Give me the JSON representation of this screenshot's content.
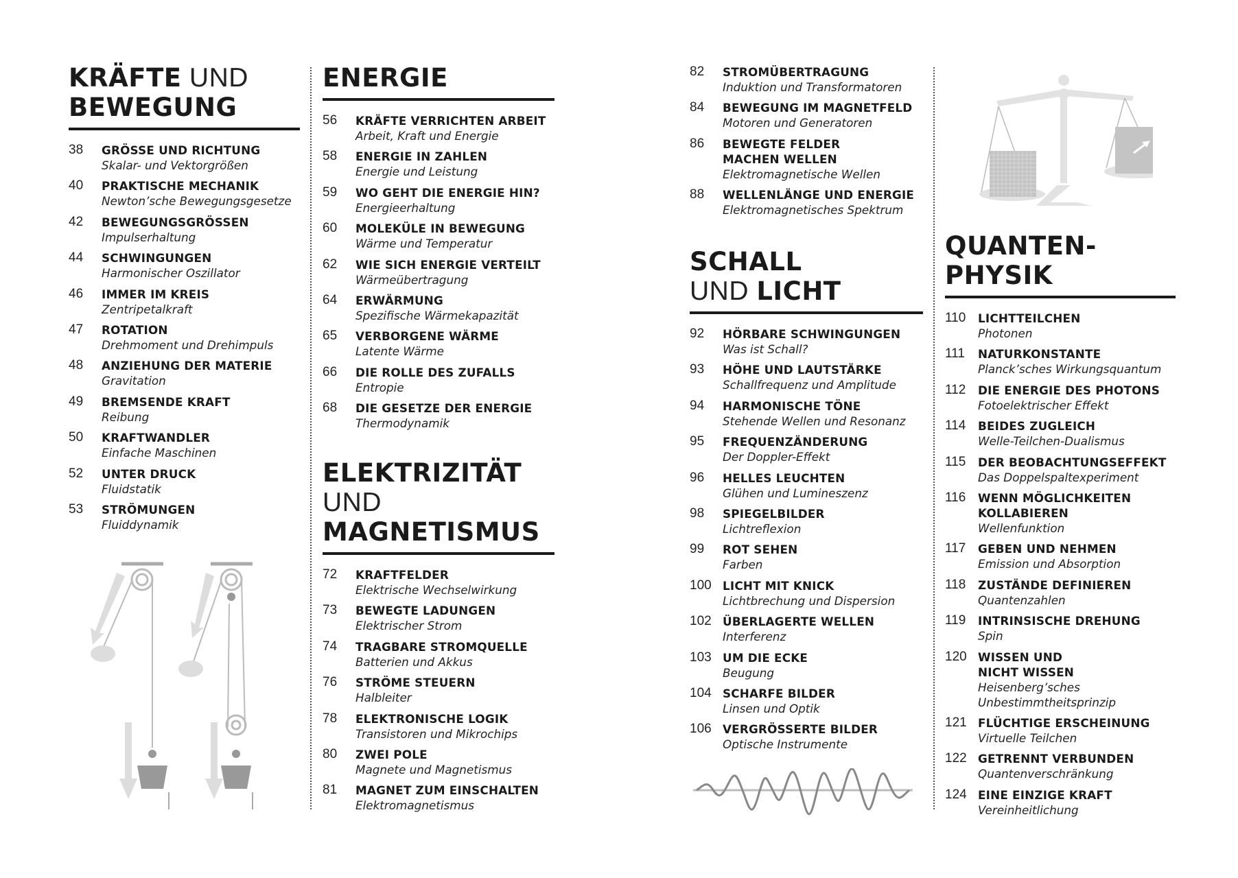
{
  "sections": [
    {
      "id": "kraefte",
      "heading": [
        [
          {
            "text": "KRÄFTE",
            "bold": true
          },
          {
            "text": " UND",
            "bold": false
          }
        ],
        [
          {
            "text": "BEWEGUNG",
            "bold": true
          }
        ]
      ],
      "entries": [
        {
          "page": "38",
          "title": "GRÖSSE UND RICHTUNG",
          "subtitle": "Skalar- und Vektorgrößen"
        },
        {
          "page": "40",
          "title": "PRAKTISCHE MECHANIK",
          "subtitle": "Newton’sche Bewegungsgesetze"
        },
        {
          "page": "42",
          "title": "BEWEGUNGSGRÖSSEN",
          "subtitle": "Impulserhaltung"
        },
        {
          "page": "44",
          "title": "SCHWINGUNGEN",
          "subtitle": "Harmonischer Oszillator"
        },
        {
          "page": "46",
          "title": "IMMER IM KREIS",
          "subtitle": "Zentripetalkraft"
        },
        {
          "page": "47",
          "title": "ROTATION",
          "subtitle": "Drehmoment und Drehimpuls"
        },
        {
          "page": "48",
          "title": "ANZIEHUNG DER MATERIE",
          "subtitle": "Gravitation"
        },
        {
          "page": "49",
          "title": "BREMSENDE KRAFT",
          "subtitle": "Reibung"
        },
        {
          "page": "50",
          "title": "KRAFTWANDLER",
          "subtitle": "Einfache Maschinen"
        },
        {
          "page": "52",
          "title": "UNTER DRUCK",
          "subtitle": "Fluidstatik"
        },
        {
          "page": "53",
          "title": "STRÖMUNGEN",
          "subtitle": "Fluiddynamik"
        }
      ]
    },
    {
      "id": "energie",
      "heading": [
        [
          {
            "text": "ENERGIE",
            "bold": true
          }
        ]
      ],
      "entries": [
        {
          "page": "56",
          "title": "KRÄFTE VERRICHTEN ARBEIT",
          "subtitle": "Arbeit, Kraft und Energie"
        },
        {
          "page": "58",
          "title": "ENERGIE IN ZAHLEN",
          "subtitle": "Energie und Leistung"
        },
        {
          "page": "59",
          "title": "WO GEHT DIE ENERGIE HIN?",
          "subtitle": "Energieerhaltung"
        },
        {
          "page": "60",
          "title": "MOLEKÜLE IN BEWEGUNG",
          "subtitle": "Wärme und Temperatur"
        },
        {
          "page": "62",
          "title": "WIE SICH ENERGIE VERTEILT",
          "subtitle": "Wärmeübertragung"
        },
        {
          "page": "64",
          "title": "ERWÄRMUNG",
          "subtitle": "Spezifische Wärmekapazität"
        },
        {
          "page": "65",
          "title": "VERBORGENE WÄRME",
          "subtitle": "Latente Wärme"
        },
        {
          "page": "66",
          "title": "DIE ROLLE DES ZUFALLS",
          "subtitle": "Entropie"
        },
        {
          "page": "68",
          "title": "DIE GESETZE DER ENERGIE",
          "subtitle": "Thermodynamik"
        }
      ]
    },
    {
      "id": "elektrizitaet",
      "heading": [
        [
          {
            "text": "ELEKTRIZITÄT",
            "bold": true
          }
        ],
        [
          {
            "text": "UND",
            "bold": false
          }
        ],
        [
          {
            "text": "MAGNETISMUS",
            "bold": true
          }
        ]
      ],
      "entries": [
        {
          "page": "72",
          "title": "KRAFTFELDER",
          "subtitle": "Elektrische Wechselwirkung"
        },
        {
          "page": "73",
          "title": "BEWEGTE LADUNGEN",
          "subtitle": "Elektrischer Strom"
        },
        {
          "page": "74",
          "title": "TRAGBARE STROMQUELLE",
          "subtitle": "Batterien und Akkus"
        },
        {
          "page": "76",
          "title": "STRÖME STEUERN",
          "subtitle": "Halbleiter"
        },
        {
          "page": "78",
          "title": "ELEKTRONISCHE LOGIK",
          "subtitle": "Transistoren und Mikrochips"
        },
        {
          "page": "80",
          "title": "ZWEI POLE",
          "subtitle": "Magnete und Magnetismus"
        },
        {
          "page": "81",
          "title": "MAGNET ZUM EINSCHALTEN",
          "subtitle": "Elektromagnetismus"
        }
      ]
    },
    {
      "id": "elektrizitaet-fortsetzung",
      "heading": [],
      "entries": [
        {
          "page": "82",
          "title": "STROMÜBERTRAGUNG",
          "subtitle": "Induktion und Transformatoren"
        },
        {
          "page": "84",
          "title": "BEWEGUNG IM MAGNETFELD",
          "subtitle": "Motoren und Generatoren"
        },
        {
          "page": "86",
          "title": "BEWEGTE FELDER\nMACHEN WELLEN",
          "subtitle": "Elektromagnetische Wellen"
        },
        {
          "page": "88",
          "title": "WELLENLÄNGE UND ENERGIE",
          "subtitle": "Elektromagnetisches Spektrum"
        }
      ]
    },
    {
      "id": "schall",
      "heading": [
        [
          {
            "text": "SCHALL",
            "bold": true
          }
        ],
        [
          {
            "text": "UND ",
            "bold": false
          },
          {
            "text": "LICHT",
            "bold": true
          }
        ]
      ],
      "entries": [
        {
          "page": "92",
          "title": "HÖRBARE SCHWINGUNGEN",
          "subtitle": "Was ist Schall?"
        },
        {
          "page": "93",
          "title": "HÖHE UND LAUTSTÄRKE",
          "subtitle": "Schallfrequenz und Amplitude"
        },
        {
          "page": "94",
          "title": "HARMONISCHE TÖNE",
          "subtitle": "Stehende Wellen und Resonanz"
        },
        {
          "page": "95",
          "title": "FREQUENZÄNDERUNG",
          "subtitle": "Der Doppler-Effekt"
        },
        {
          "page": "96",
          "title": "HELLES LEUCHTEN",
          "subtitle": "Glühen und Lumineszenz"
        },
        {
          "page": "98",
          "title": "SPIEGELBILDER",
          "subtitle": "Lichtreflexion"
        },
        {
          "page": "99",
          "title": "ROT SEHEN",
          "subtitle": "Farben"
        },
        {
          "page": "100",
          "title": "LICHT MIT KNICK",
          "subtitle": "Lichtbrechung und Dispersion"
        },
        {
          "page": "102",
          "title": "ÜBERLAGERTE WELLEN",
          "subtitle": "Interferenz"
        },
        {
          "page": "103",
          "title": "UM DIE ECKE",
          "subtitle": "Beugung"
        },
        {
          "page": "104",
          "title": "SCHARFE BILDER",
          "subtitle": "Linsen und Optik"
        },
        {
          "page": "106",
          "title": "VERGRÖSSERTE BILDER",
          "subtitle": "Optische Instrumente"
        }
      ]
    },
    {
      "id": "quanten",
      "heading": [
        [
          {
            "text": "QUANTEN-",
            "bold": true
          }
        ],
        [
          {
            "text": "PHYSIK",
            "bold": true
          }
        ]
      ],
      "entries": [
        {
          "page": "110",
          "title": "LICHTTEILCHEN",
          "subtitle": "Photonen"
        },
        {
          "page": "111",
          "title": "NATURKONSTANTE",
          "subtitle": "Planck’sches Wirkungsquantum"
        },
        {
          "page": "112",
          "title": "DIE ENERGIE DES PHOTONS",
          "subtitle": "Fotoelektrischer Effekt"
        },
        {
          "page": "114",
          "title": "BEIDES ZUGLEICH",
          "subtitle": "Welle-Teilchen-Dualismus"
        },
        {
          "page": "115",
          "title": "DER BEOBACHTUNGSEFFEKT",
          "subtitle": "Das Doppelspaltexperiment"
        },
        {
          "page": "116",
          "title": "WENN MÖGLICHKEITEN\nKOLLABIEREN",
          "subtitle": "Wellenfunktion"
        },
        {
          "page": "117",
          "title": "GEBEN UND NEHMEN",
          "subtitle": "Emission und Absorption"
        },
        {
          "page": "118",
          "title": "ZUSTÄNDE DEFINIEREN",
          "subtitle": "Quantenzahlen"
        },
        {
          "page": "119",
          "title": "INTRINSISCHE DREHUNG",
          "subtitle": "Spin"
        },
        {
          "page": "120",
          "title": "WISSEN UND\nNICHT WISSEN",
          "subtitle": "Heisenberg’sches\nUnbestimmtheitsprinzip"
        },
        {
          "page": "121",
          "title": "FLÜCHTIGE ERSCHEINUNG",
          "subtitle": "Virtuelle Teilchen"
        },
        {
          "page": "122",
          "title": "GETRENNT VERBUNDEN",
          "subtitle": "Quantenverschränkung"
        },
        {
          "page": "124",
          "title": "EINE EINZIGE KRAFT",
          "subtitle": "Vereinheitlichung"
        }
      ]
    }
  ],
  "illustrations": [
    "pulley-illustration",
    "balance-scale-illustration",
    "sound-wave-illustration"
  ]
}
